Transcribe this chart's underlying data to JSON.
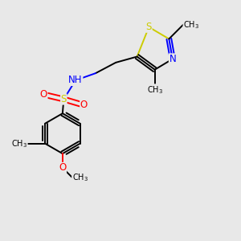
{
  "background_color": "#e8e8e8",
  "figsize": [
    3.0,
    3.0
  ],
  "dpi": 100,
  "colors": {
    "S": "#cccc00",
    "N": "#0000ff",
    "O": "#ff0000",
    "C": "#000000",
    "H": "#808080",
    "bond": "#000000"
  },
  "lw": 1.4,
  "dbl_sep": 0.012,
  "font_size": 7.5
}
